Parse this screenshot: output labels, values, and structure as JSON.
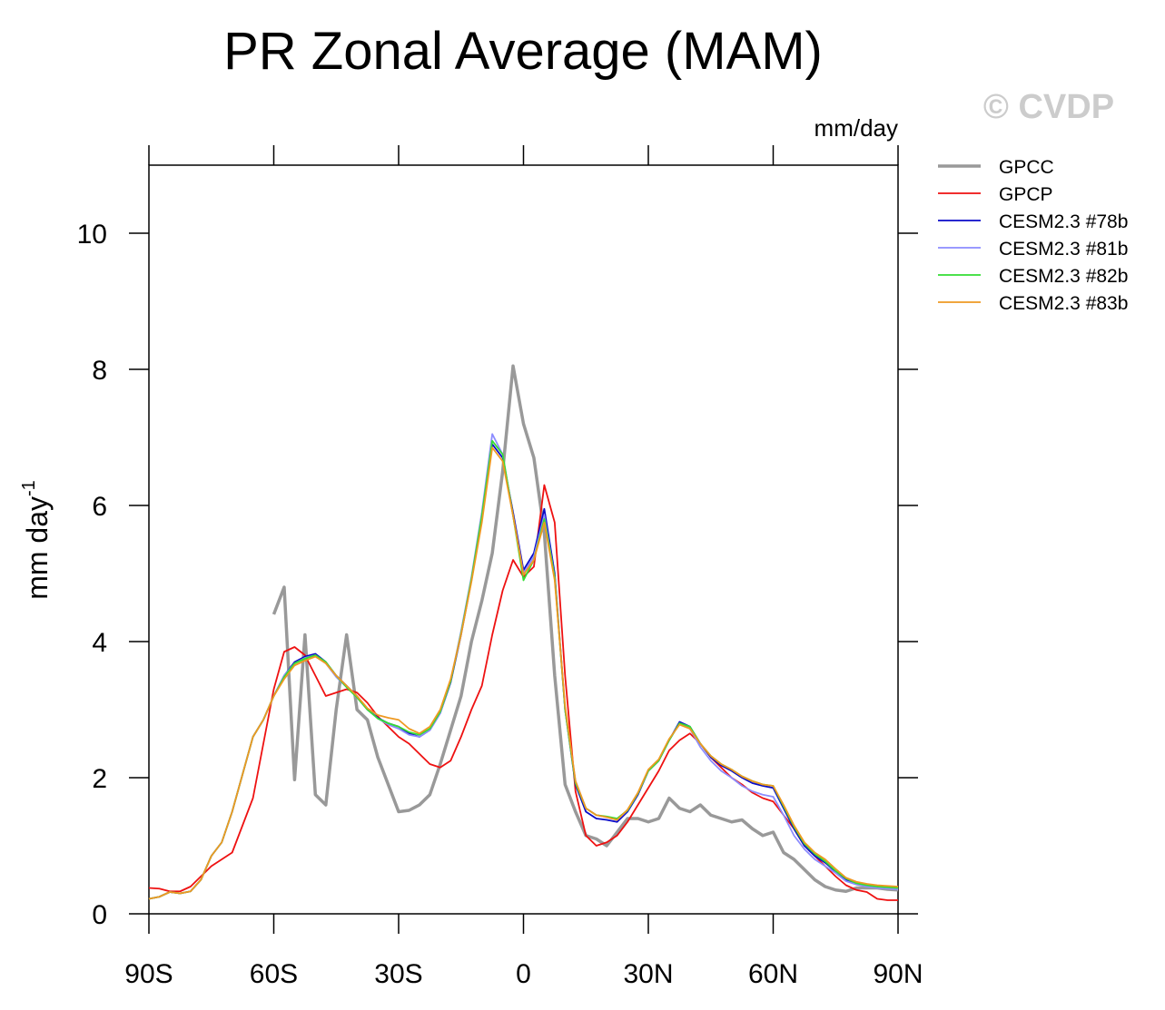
{
  "chart_data": {
    "type": "line",
    "title": "PR Zonal Average (MAM)",
    "watermark": "© CVDP",
    "units": "mm/day",
    "ylabel": "mm day",
    "ylabel_superscript": "-1",
    "x": [
      -90,
      -87.5,
      -85,
      -82.5,
      -80,
      -77.5,
      -75,
      -72.5,
      -70,
      -67.5,
      -65,
      -62.5,
      -60,
      -57.5,
      -55,
      -52.5,
      -50,
      -47.5,
      -45,
      -42.5,
      -40,
      -37.5,
      -35,
      -32.5,
      -30,
      -27.5,
      -25,
      -22.5,
      -20,
      -17.5,
      -15,
      -12.5,
      -10,
      -7.5,
      -5,
      -2.5,
      0,
      2.5,
      5,
      7.5,
      10,
      12.5,
      15,
      17.5,
      20,
      22.5,
      25,
      27.5,
      30,
      32.5,
      35,
      37.5,
      40,
      42.5,
      45,
      47.5,
      50,
      52.5,
      55,
      57.5,
      60,
      62.5,
      65,
      67.5,
      70,
      72.5,
      75,
      77.5,
      80,
      82.5,
      85,
      87.5,
      90
    ],
    "xlim": [
      -90,
      90
    ],
    "ylim": [
      0,
      11
    ],
    "xticks": [
      {
        "value": -90,
        "label": "90S"
      },
      {
        "value": -60,
        "label": "60S"
      },
      {
        "value": -30,
        "label": "30S"
      },
      0,
      {
        "value": 30,
        "label": "30N"
      },
      {
        "value": 60,
        "label": "60N"
      },
      {
        "value": 90,
        "label": "90N"
      }
    ],
    "yticks": [
      0,
      2,
      4,
      6,
      8,
      10
    ],
    "legend": "top-right",
    "series": [
      {
        "name": "GPCC",
        "color": "#999999",
        "width": 3.5,
        "values": [
          null,
          null,
          null,
          null,
          null,
          null,
          null,
          null,
          null,
          null,
          null,
          null,
          4.4,
          4.8,
          1.97,
          4.1,
          1.75,
          1.6,
          3.0,
          4.1,
          3.0,
          2.85,
          2.3,
          1.9,
          1.5,
          1.52,
          1.6,
          1.75,
          2.2,
          2.7,
          3.2,
          4.0,
          4.6,
          5.3,
          6.5,
          8.05,
          7.2,
          6.7,
          5.6,
          3.5,
          1.9,
          1.5,
          1.15,
          1.1,
          1.0,
          1.2,
          1.4,
          1.4,
          1.35,
          1.4,
          1.7,
          1.55,
          1.5,
          1.6,
          1.45,
          1.4,
          1.35,
          1.38,
          1.25,
          1.15,
          1.2,
          0.9,
          0.8,
          0.65,
          0.5,
          0.4,
          0.35,
          0.33,
          0.38,
          0.38,
          0.38,
          0.36,
          0.35
        ]
      },
      {
        "name": "GPCP",
        "color": "#ee1111",
        "width": 1.8,
        "values": [
          0.38,
          0.37,
          0.33,
          0.33,
          0.4,
          0.55,
          0.7,
          0.8,
          0.9,
          1.3,
          1.7,
          2.5,
          3.3,
          3.85,
          3.92,
          3.8,
          3.5,
          3.2,
          3.25,
          3.3,
          3.25,
          3.1,
          2.9,
          2.75,
          2.6,
          2.5,
          2.35,
          2.2,
          2.15,
          2.25,
          2.6,
          3.0,
          3.35,
          4.1,
          4.75,
          5.2,
          4.95,
          5.1,
          6.3,
          5.75,
          3.5,
          1.8,
          1.15,
          1.0,
          1.05,
          1.15,
          1.35,
          1.6,
          1.85,
          2.1,
          2.4,
          2.55,
          2.65,
          2.5,
          2.3,
          2.15,
          2.0,
          1.9,
          1.78,
          1.7,
          1.65,
          1.45,
          1.25,
          1.0,
          0.85,
          0.7,
          0.55,
          0.42,
          0.35,
          0.32,
          0.22,
          0.2,
          0.2
        ]
      },
      {
        "name": "CESM2.3 #78b",
        "color": "#0a0ac8",
        "width": 1.8,
        "values": [
          0.22,
          0.25,
          0.32,
          0.3,
          0.33,
          0.5,
          0.85,
          1.05,
          1.5,
          2.05,
          2.6,
          2.85,
          3.2,
          3.5,
          3.7,
          3.78,
          3.82,
          3.7,
          3.5,
          3.35,
          3.2,
          3.0,
          2.88,
          2.8,
          2.75,
          2.65,
          2.6,
          2.7,
          2.95,
          3.4,
          4.1,
          4.9,
          5.8,
          6.9,
          6.7,
          5.9,
          5.05,
          5.3,
          5.95,
          5.0,
          3.0,
          1.9,
          1.5,
          1.4,
          1.38,
          1.35,
          1.5,
          1.75,
          2.1,
          2.25,
          2.55,
          2.82,
          2.75,
          2.5,
          2.3,
          2.18,
          2.1,
          2.0,
          1.92,
          1.88,
          1.85,
          1.55,
          1.25,
          1.0,
          0.85,
          0.75,
          0.62,
          0.5,
          0.45,
          0.42,
          0.4,
          0.38,
          0.37
        ]
      },
      {
        "name": "CESM2.3 #81b",
        "color": "#8c8cff",
        "width": 1.8,
        "values": [
          0.22,
          0.25,
          0.32,
          0.3,
          0.33,
          0.5,
          0.85,
          1.05,
          1.5,
          2.05,
          2.6,
          2.85,
          3.2,
          3.5,
          3.68,
          3.76,
          3.8,
          3.68,
          3.48,
          3.33,
          3.18,
          3.0,
          2.87,
          2.78,
          2.72,
          2.63,
          2.6,
          2.7,
          2.95,
          3.42,
          4.15,
          4.95,
          5.9,
          7.05,
          6.75,
          5.85,
          5.0,
          5.25,
          5.85,
          4.95,
          3.0,
          1.95,
          1.55,
          1.45,
          1.42,
          1.38,
          1.52,
          1.77,
          2.1,
          2.25,
          2.55,
          2.8,
          2.72,
          2.45,
          2.25,
          2.1,
          2.0,
          1.88,
          1.8,
          1.75,
          1.72,
          1.45,
          1.15,
          0.95,
          0.8,
          0.7,
          0.6,
          0.48,
          0.43,
          0.4,
          0.38,
          0.37,
          0.36
        ]
      },
      {
        "name": "CESM2.3 #82b",
        "color": "#33dd33",
        "width": 1.8,
        "values": [
          0.22,
          0.25,
          0.32,
          0.3,
          0.33,
          0.5,
          0.85,
          1.05,
          1.5,
          2.05,
          2.6,
          2.85,
          3.2,
          3.48,
          3.68,
          3.75,
          3.8,
          3.7,
          3.5,
          3.33,
          3.18,
          3.0,
          2.87,
          2.8,
          2.75,
          2.67,
          2.63,
          2.72,
          2.97,
          3.42,
          4.12,
          4.92,
          5.85,
          6.95,
          6.75,
          5.85,
          4.9,
          5.2,
          5.8,
          4.95,
          3.0,
          1.92,
          1.55,
          1.45,
          1.43,
          1.4,
          1.52,
          1.77,
          2.1,
          2.25,
          2.55,
          2.8,
          2.75,
          2.5,
          2.32,
          2.2,
          2.12,
          2.02,
          1.95,
          1.9,
          1.88,
          1.58,
          1.28,
          1.03,
          0.88,
          0.77,
          0.63,
          0.52,
          0.45,
          0.42,
          0.4,
          0.39,
          0.38
        ]
      },
      {
        "name": "CESM2.3 #83b",
        "color": "#ee9922",
        "width": 1.8,
        "values": [
          0.22,
          0.25,
          0.32,
          0.3,
          0.33,
          0.5,
          0.85,
          1.05,
          1.5,
          2.05,
          2.6,
          2.85,
          3.2,
          3.45,
          3.65,
          3.72,
          3.78,
          3.68,
          3.5,
          3.35,
          3.2,
          3.02,
          2.92,
          2.88,
          2.85,
          2.72,
          2.65,
          2.75,
          3.0,
          3.45,
          4.1,
          4.88,
          5.75,
          6.85,
          6.65,
          5.85,
          4.98,
          5.2,
          5.75,
          4.9,
          3.05,
          1.95,
          1.55,
          1.45,
          1.42,
          1.38,
          1.53,
          1.78,
          2.12,
          2.27,
          2.57,
          2.78,
          2.72,
          2.5,
          2.32,
          2.2,
          2.12,
          2.02,
          1.95,
          1.9,
          1.88,
          1.6,
          1.3,
          1.05,
          0.9,
          0.8,
          0.66,
          0.53,
          0.47,
          0.44,
          0.42,
          0.41,
          0.4
        ]
      }
    ]
  }
}
